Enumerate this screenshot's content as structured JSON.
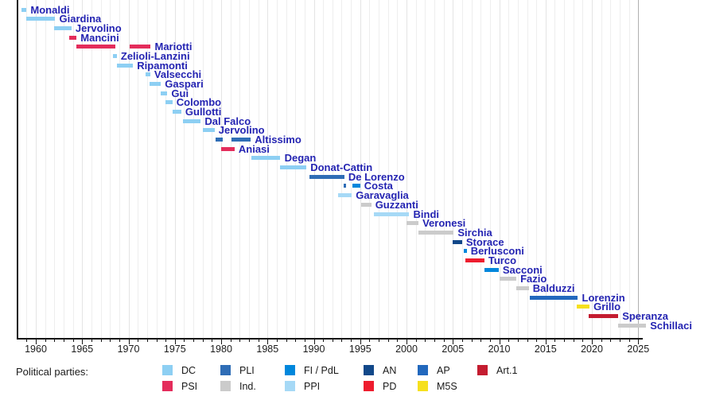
{
  "legend": {
    "heading": "Political parties:",
    "entries": [
      {
        "label": "DC",
        "party": "dc",
        "col": 0,
        "row": 0
      },
      {
        "label": "PSI",
        "party": "psi",
        "col": 0,
        "row": 1
      },
      {
        "label": "PLI",
        "party": "pli",
        "col": 1,
        "row": 0
      },
      {
        "label": "Ind.",
        "party": "ind",
        "col": 1,
        "row": 1
      },
      {
        "label": "FI / PdL",
        "party": "fi",
        "col": 2,
        "row": 0
      },
      {
        "label": "PPI",
        "party": "ppi",
        "col": 2,
        "row": 1
      },
      {
        "label": "AN",
        "party": "an",
        "col": 3,
        "row": 0
      },
      {
        "label": "PD",
        "party": "pd",
        "col": 3,
        "row": 1
      },
      {
        "label": "AP",
        "party": "ap",
        "col": 4,
        "row": 0
      },
      {
        "label": "M5S",
        "party": "m5s",
        "col": 4,
        "row": 1
      },
      {
        "label": "Art.1",
        "party": "art1",
        "col": 5,
        "row": 0
      }
    ]
  },
  "chart_data": {
    "type": "timeline",
    "unit": "year",
    "x_axis": {
      "major_ticks": [
        1960,
        1965,
        1970,
        1975,
        1980,
        1985,
        1990,
        1995,
        2000,
        2005,
        2010,
        2015,
        2020,
        2025
      ],
      "minor_step": 1,
      "range": [
        1958,
        2026
      ],
      "grid": true
    },
    "legend_position": "bottom",
    "party_colors": {
      "dc": "#8dcff3",
      "psi": "#e42c5b",
      "pli": "#2f6db6",
      "ind": "#cbcbcb",
      "fi": "#0087dc",
      "ppi": "#a6d9f6",
      "an": "#114889",
      "pd": "#ee1c2e",
      "ap": "#2268bd",
      "m5s": "#f6e01e",
      "art1": "#c41c30"
    },
    "label_color": "#2424b2",
    "ministers": [
      {
        "name": "Monaldi",
        "terms": [
          {
            "start": 1958.45,
            "end": 1959.0,
            "party": "dc"
          }
        ]
      },
      {
        "name": "Giardina",
        "terms": [
          {
            "start": 1959.0,
            "end": 1962.1,
            "party": "dc"
          }
        ]
      },
      {
        "name": "Jervolino",
        "terms": [
          {
            "start": 1961.95,
            "end": 1963.85,
            "party": "dc"
          }
        ]
      },
      {
        "name": "Mancini",
        "terms": [
          {
            "start": 1963.6,
            "end": 1964.4,
            "party": "psi"
          }
        ]
      },
      {
        "name": "Mariotti",
        "terms": [
          {
            "start": 1964.4,
            "end": 1968.6,
            "party": "psi"
          },
          {
            "start": 1970.1,
            "end": 1972.4,
            "party": "psi"
          }
        ]
      },
      {
        "name": "Zelioli-Lanzini",
        "terms": [
          {
            "start": 1968.3,
            "end": 1968.75,
            "party": "dc"
          }
        ]
      },
      {
        "name": "Ripamonti",
        "terms": [
          {
            "start": 1968.75,
            "end": 1970.5,
            "party": "dc"
          }
        ]
      },
      {
        "name": "Valsecchi",
        "terms": [
          {
            "start": 1971.85,
            "end": 1972.35,
            "party": "dc"
          }
        ]
      },
      {
        "name": "Gaspari",
        "terms": [
          {
            "start": 1972.3,
            "end": 1973.5,
            "party": "dc"
          }
        ]
      },
      {
        "name": "Gui",
        "terms": [
          {
            "start": 1973.5,
            "end": 1974.2,
            "party": "dc"
          }
        ]
      },
      {
        "name": "Colombo",
        "terms": [
          {
            "start": 1974.0,
            "end": 1974.75,
            "party": "dc"
          }
        ]
      },
      {
        "name": "Gullotti",
        "terms": [
          {
            "start": 1974.8,
            "end": 1975.7,
            "party": "dc"
          }
        ]
      },
      {
        "name": "Dal Falco",
        "terms": [
          {
            "start": 1975.9,
            "end": 1977.8,
            "party": "dc"
          }
        ]
      },
      {
        "name": "Jervolino",
        "terms": [
          {
            "start": 1978.0,
            "end": 1979.3,
            "party": "dc"
          }
        ]
      },
      {
        "name": "Altissimo",
        "terms": [
          {
            "start": 1979.4,
            "end": 1980.2,
            "party": "pli"
          },
          {
            "start": 1981.1,
            "end": 1983.2,
            "party": "pli"
          }
        ]
      },
      {
        "name": "Aniasi",
        "terms": [
          {
            "start": 1980.0,
            "end": 1981.45,
            "party": "psi"
          }
        ]
      },
      {
        "name": "Degan",
        "terms": [
          {
            "start": 1983.3,
            "end": 1986.4,
            "party": "dc"
          }
        ]
      },
      {
        "name": "Donat-Cattin",
        "terms": [
          {
            "start": 1986.35,
            "end": 1989.2,
            "party": "dc"
          }
        ]
      },
      {
        "name": "De Lorenzo",
        "terms": [
          {
            "start": 1989.5,
            "end": 1993.3,
            "party": "pli"
          }
        ]
      },
      {
        "name": "Costa",
        "terms": [
          {
            "start": 1993.2,
            "end": 1993.5,
            "party": "pli"
          },
          {
            "start": 1994.2,
            "end": 1995.0,
            "party": "fi"
          }
        ]
      },
      {
        "name": "Garavaglia",
        "terms": [
          {
            "start": 1992.6,
            "end": 1994.1,
            "party": "ppi"
          }
        ]
      },
      {
        "name": "Guzzanti",
        "terms": [
          {
            "start": 1995.1,
            "end": 1996.2,
            "party": "ind"
          }
        ]
      },
      {
        "name": "Bindi",
        "terms": [
          {
            "start": 1996.5,
            "end": 2000.3,
            "party": "ppi"
          }
        ]
      },
      {
        "name": "Veronesi",
        "terms": [
          {
            "start": 2000.0,
            "end": 2001.3,
            "party": "ind"
          }
        ]
      },
      {
        "name": "Sirchia",
        "terms": [
          {
            "start": 2001.3,
            "end": 2005.1,
            "party": "ind"
          }
        ]
      },
      {
        "name": "Storace",
        "terms": [
          {
            "start": 2005.0,
            "end": 2006.0,
            "party": "an"
          }
        ]
      },
      {
        "name": "Berlusconi",
        "terms": [
          {
            "start": 2006.15,
            "end": 2006.5,
            "party": "fi"
          }
        ]
      },
      {
        "name": "Turco",
        "terms": [
          {
            "start": 2006.35,
            "end": 2008.4,
            "party": "pd"
          }
        ]
      },
      {
        "name": "Sacconi",
        "terms": [
          {
            "start": 2008.45,
            "end": 2009.95,
            "party": "fi"
          }
        ]
      },
      {
        "name": "Fazio",
        "terms": [
          {
            "start": 2010.0,
            "end": 2011.85,
            "party": "ind"
          }
        ]
      },
      {
        "name": "Balduzzi",
        "terms": [
          {
            "start": 2011.85,
            "end": 2013.2,
            "party": "ind"
          }
        ]
      },
      {
        "name": "Lorenzin",
        "terms": [
          {
            "start": 2013.3,
            "end": 2018.5,
            "party": "ap"
          }
        ]
      },
      {
        "name": "Grillo",
        "terms": [
          {
            "start": 2018.4,
            "end": 2019.75,
            "party": "m5s"
          }
        ]
      },
      {
        "name": "Speranza",
        "terms": [
          {
            "start": 2019.65,
            "end": 2022.85,
            "party": "art1"
          }
        ]
      },
      {
        "name": "Schillaci",
        "terms": [
          {
            "start": 2022.85,
            "end": 2025.85,
            "party": "ind"
          }
        ]
      }
    ]
  }
}
